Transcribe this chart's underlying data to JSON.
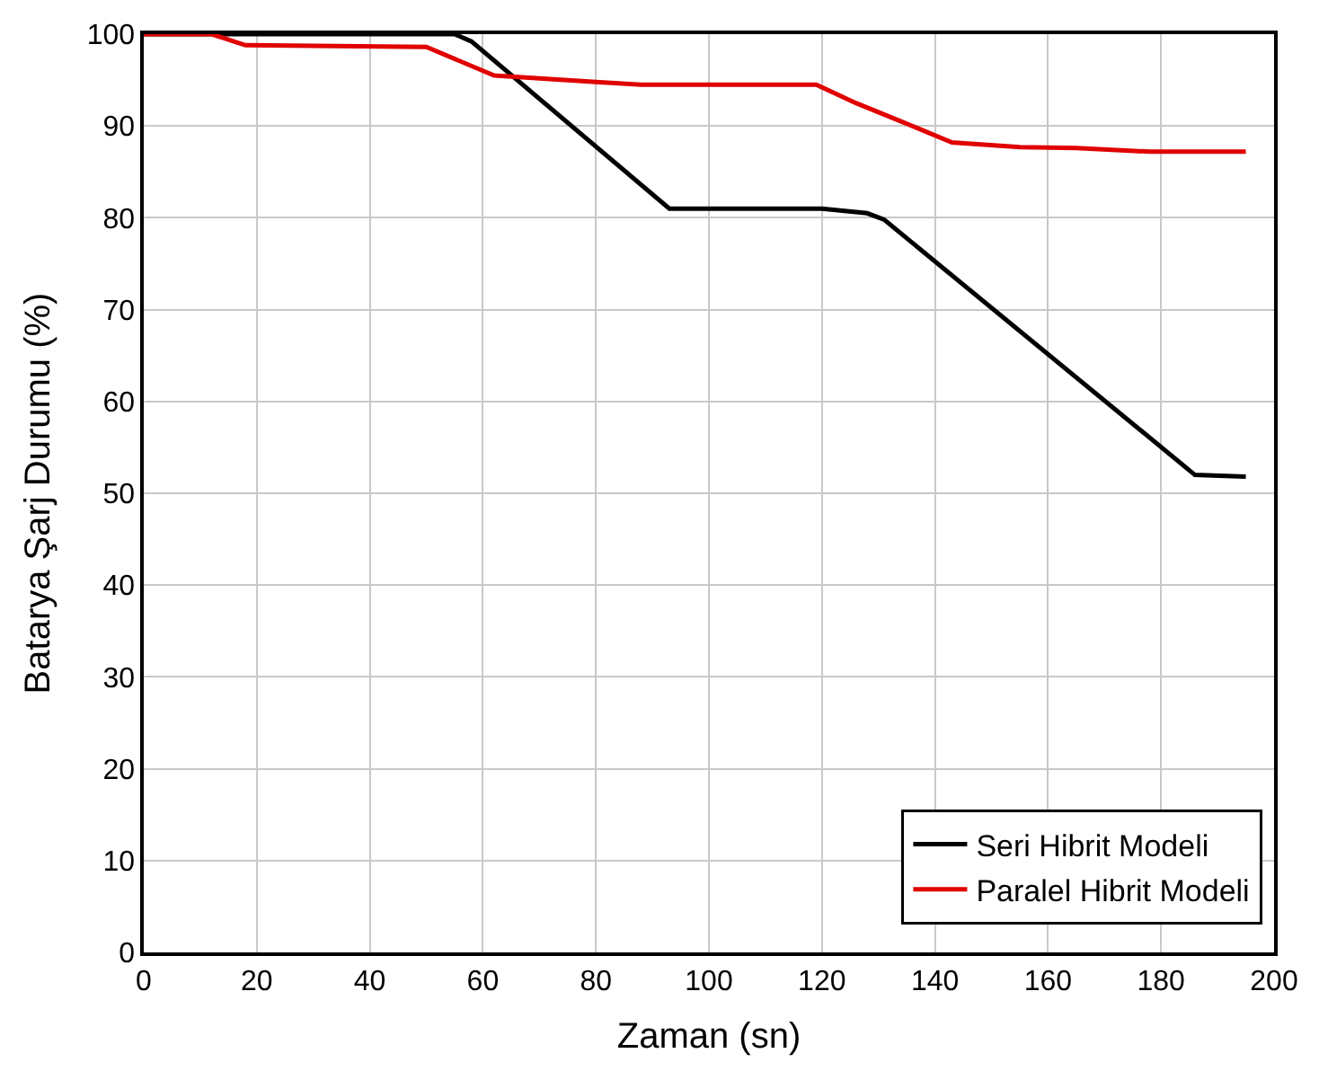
{
  "chart_data": {
    "type": "line",
    "xlabel": "Zaman (sn)",
    "ylabel": "Batarya Şarj Durumu (%)",
    "xlim": [
      0,
      200
    ],
    "xticks": [
      0,
      20,
      40,
      60,
      80,
      100,
      120,
      140,
      160,
      180,
      200
    ],
    "ylim": [
      0,
      100
    ],
    "yticks": [
      0,
      10,
      20,
      30,
      40,
      50,
      60,
      70,
      80,
      90,
      100
    ],
    "grid": true,
    "legend": "bottom right",
    "marker": "none",
    "line_style": "solid",
    "series": [
      {
        "name": "Seri Hibrit Modeli",
        "color": "#000000",
        "x": [
          0,
          55,
          58,
          93,
          120,
          128,
          131,
          186,
          195
        ],
        "values": [
          100,
          100,
          99.2,
          81,
          81,
          80.5,
          79.8,
          52,
          51.8
        ]
      },
      {
        "name": "Paralel Hibrit Modeli",
        "color": "#e00000",
        "x": [
          0,
          12,
          18,
          50,
          62,
          80,
          88,
          119,
          126,
          134,
          143,
          155,
          165,
          178,
          195
        ],
        "values": [
          100,
          100,
          98.8,
          98.6,
          95.5,
          94.8,
          94.5,
          94.5,
          92.5,
          90.5,
          88.2,
          87.7,
          87.6,
          87.2,
          87.2
        ]
      }
    ]
  }
}
